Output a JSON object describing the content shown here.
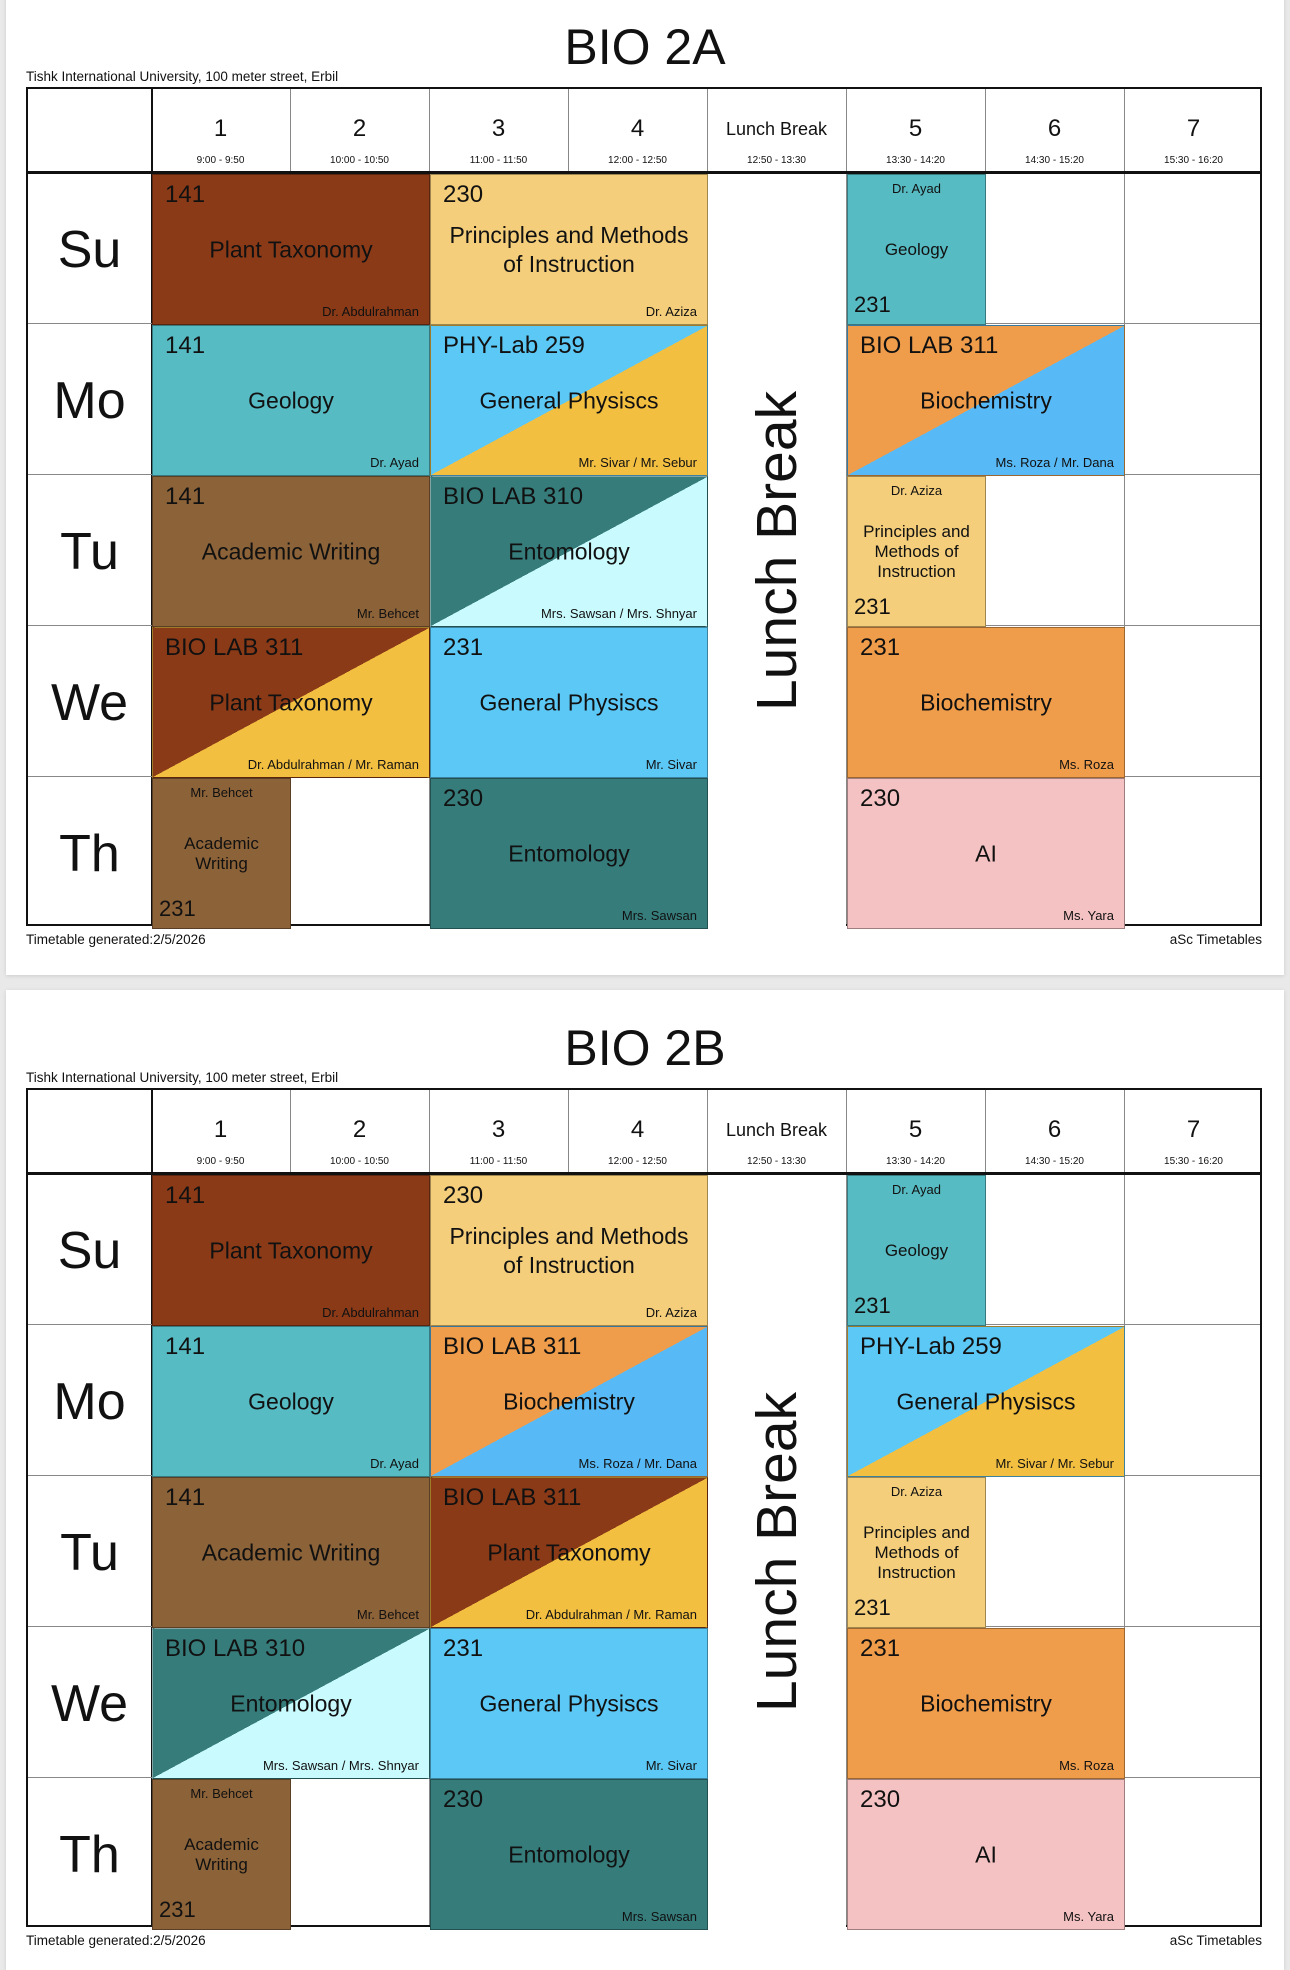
{
  "colors": {
    "plant_brown": "#8B3A18",
    "principles_orange": "#F4CE7A",
    "geology_teal": "#57BBC3",
    "physics_sky": "#5CC8F5",
    "physics_yellow": "#F3BF40",
    "biochem_orange": "#F09D4B",
    "biochem_blue": "#57B9F5",
    "writing_brown": "#8C6238",
    "ento_teal": "#367C7B",
    "ento_cyan": "#C9FAFD",
    "ai_pink": "#F4C2C3"
  },
  "columns": [
    {
      "label": "1",
      "time": "9:00 - 9:50"
    },
    {
      "label": "2",
      "time": "10:00 - 10:50"
    },
    {
      "label": "3",
      "time": "11:00 - 11:50"
    },
    {
      "label": "4",
      "time": "12:00 - 12:50"
    },
    {
      "label": "Lunch Break",
      "time": "12:50 - 13:30"
    },
    {
      "label": "5",
      "time": "13:30 - 14:20"
    },
    {
      "label": "6",
      "time": "14:30 - 15:20"
    },
    {
      "label": "7",
      "time": "15:30 - 16:20"
    }
  ],
  "days": [
    "Su",
    "Mo",
    "Tu",
    "We",
    "Th"
  ],
  "lunch_text": "Lunch Break",
  "address": "Tishk International University, 100 meter street, Erbil",
  "footer_left": "Timetable generated:2/5/2026",
  "footer_right": "aSc Timetables",
  "timetables": [
    {
      "title": "BIO 2A",
      "lessons": [
        {
          "day": 0,
          "col": 0,
          "span": 1,
          "room": "141",
          "subject": "Plant Taxonomy",
          "teacher": "Dr. Abdulrahman",
          "color": "plant_brown"
        },
        {
          "day": 0,
          "col": 2,
          "span": 1,
          "room": "230",
          "subject": "Principles and Methods of Instruction",
          "teacher": "Dr. Aziza",
          "color": "principles_orange"
        },
        {
          "day": 0,
          "col": 5,
          "span": 0,
          "room": "231",
          "subject": "Geology",
          "teacher": "Dr. Ayad",
          "color": "geology_teal"
        },
        {
          "day": 1,
          "col": 0,
          "span": 1,
          "room": "141",
          "subject": "Geology",
          "teacher": "Dr. Ayad",
          "color": "geology_teal"
        },
        {
          "day": 1,
          "col": 2,
          "span": 1,
          "room": "PHY-Lab 259",
          "subject": "General Physiscs",
          "teacher": "Mr. Sivar / Mr. Sebur",
          "color": "physics_sky",
          "color2": "physics_yellow"
        },
        {
          "day": 1,
          "col": 5,
          "span": 1,
          "room": "BIO LAB 311",
          "subject": "Biochemistry",
          "teacher": "Ms. Roza / Mr. Dana",
          "color": "biochem_orange",
          "color2": "biochem_blue"
        },
        {
          "day": 2,
          "col": 0,
          "span": 1,
          "room": "141",
          "subject": "Academic Writing",
          "teacher": "Mr. Behcet",
          "color": "writing_brown"
        },
        {
          "day": 2,
          "col": 2,
          "span": 1,
          "room": "BIO LAB 310",
          "subject": "Entomology",
          "teacher": "Mrs. Sawsan / Mrs. Shnyar",
          "color": "ento_teal",
          "color2": "ento_cyan"
        },
        {
          "day": 2,
          "col": 5,
          "span": 0,
          "room": "231",
          "subject": "Principles and Methods of Instruction",
          "teacher": "Dr. Aziza",
          "color": "principles_orange"
        },
        {
          "day": 3,
          "col": 0,
          "span": 1,
          "room": "BIO LAB 311",
          "subject": "Plant Taxonomy",
          "teacher": "Dr. Abdulrahman / Mr. Raman",
          "color": "plant_brown",
          "color2": "physics_yellow"
        },
        {
          "day": 3,
          "col": 2,
          "span": 1,
          "room": "231",
          "subject": "General Physiscs",
          "teacher": "Mr. Sivar",
          "color": "physics_sky"
        },
        {
          "day": 3,
          "col": 5,
          "span": 1,
          "room": "231",
          "subject": "Biochemistry",
          "teacher": "Ms. Roza",
          "color": "biochem_orange"
        },
        {
          "day": 4,
          "col": 0,
          "span": 0,
          "room": "231",
          "subject": "Academic Writing",
          "teacher": "Mr. Behcet",
          "color": "writing_brown"
        },
        {
          "day": 4,
          "col": 2,
          "span": 1,
          "room": "230",
          "subject": "Entomology",
          "teacher": "Mrs. Sawsan",
          "color": "ento_teal"
        },
        {
          "day": 4,
          "col": 5,
          "span": 1,
          "room": "230",
          "subject": "AI",
          "teacher": "Ms. Yara",
          "color": "ai_pink"
        }
      ]
    },
    {
      "title": "BIO 2B",
      "lessons": [
        {
          "day": 0,
          "col": 0,
          "span": 1,
          "room": "141",
          "subject": "Plant Taxonomy",
          "teacher": "Dr. Abdulrahman",
          "color": "plant_brown"
        },
        {
          "day": 0,
          "col": 2,
          "span": 1,
          "room": "230",
          "subject": "Principles and Methods of Instruction",
          "teacher": "Dr. Aziza",
          "color": "principles_orange"
        },
        {
          "day": 0,
          "col": 5,
          "span": 0,
          "room": "231",
          "subject": "Geology",
          "teacher": "Dr. Ayad",
          "color": "geology_teal"
        },
        {
          "day": 1,
          "col": 0,
          "span": 1,
          "room": "141",
          "subject": "Geology",
          "teacher": "Dr. Ayad",
          "color": "geology_teal"
        },
        {
          "day": 1,
          "col": 2,
          "span": 1,
          "room": "BIO LAB 311",
          "subject": "Biochemistry",
          "teacher": "Ms. Roza / Mr. Dana",
          "color": "biochem_orange",
          "color2": "biochem_blue"
        },
        {
          "day": 1,
          "col": 5,
          "span": 1,
          "room": "PHY-Lab 259",
          "subject": "General Physiscs",
          "teacher": "Mr. Sivar / Mr. Sebur",
          "color": "physics_sky",
          "color2": "physics_yellow"
        },
        {
          "day": 2,
          "col": 0,
          "span": 1,
          "room": "141",
          "subject": "Academic Writing",
          "teacher": "Mr. Behcet",
          "color": "writing_brown"
        },
        {
          "day": 2,
          "col": 2,
          "span": 1,
          "room": "BIO LAB 311",
          "subject": "Plant Taxonomy",
          "teacher": "Dr. Abdulrahman / Mr. Raman",
          "color": "plant_brown",
          "color2": "physics_yellow"
        },
        {
          "day": 2,
          "col": 5,
          "span": 0,
          "room": "231",
          "subject": "Principles and Methods of Instruction",
          "teacher": "Dr. Aziza",
          "color": "principles_orange"
        },
        {
          "day": 3,
          "col": 0,
          "span": 1,
          "room": "BIO LAB 310",
          "subject": "Entomology",
          "teacher": "Mrs. Sawsan / Mrs. Shnyar",
          "color": "ento_teal",
          "color2": "ento_cyan"
        },
        {
          "day": 3,
          "col": 2,
          "span": 1,
          "room": "231",
          "subject": "General Physiscs",
          "teacher": "Mr. Sivar",
          "color": "physics_sky"
        },
        {
          "day": 3,
          "col": 5,
          "span": 1,
          "room": "231",
          "subject": "Biochemistry",
          "teacher": "Ms. Roza",
          "color": "biochem_orange"
        },
        {
          "day": 4,
          "col": 0,
          "span": 0,
          "room": "231",
          "subject": "Academic Writing",
          "teacher": "Mr. Behcet",
          "color": "writing_brown"
        },
        {
          "day": 4,
          "col": 2,
          "span": 1,
          "room": "230",
          "subject": "Entomology",
          "teacher": "Mrs. Sawsan",
          "color": "ento_teal"
        },
        {
          "day": 4,
          "col": 5,
          "span": 1,
          "room": "230",
          "subject": "AI",
          "teacher": "Ms. Yara",
          "color": "ai_pink"
        }
      ]
    }
  ]
}
